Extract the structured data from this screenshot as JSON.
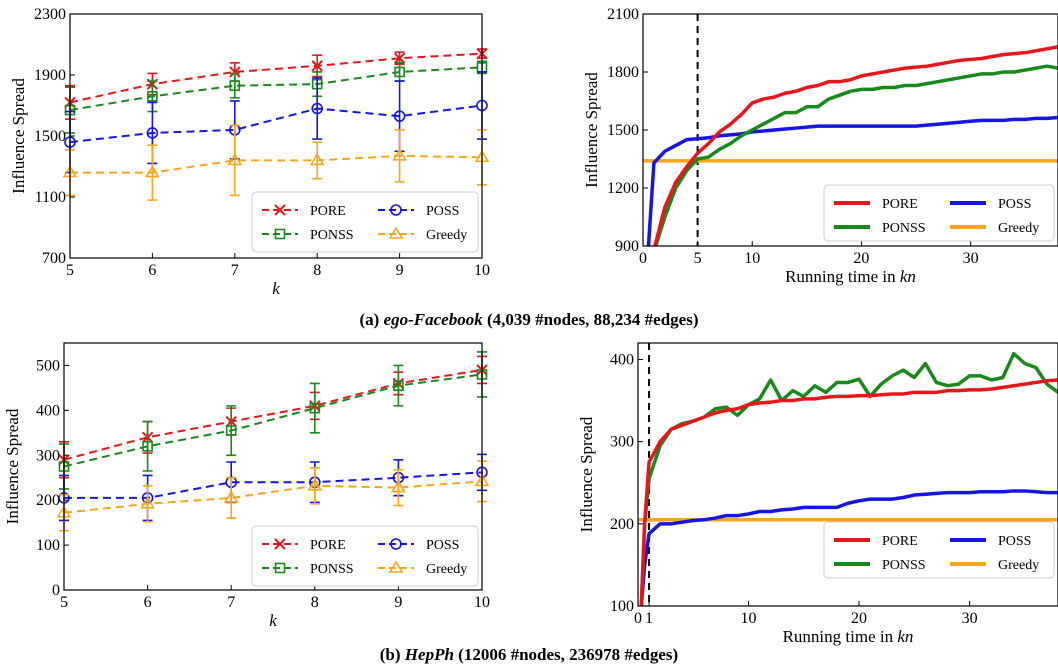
{
  "colors": {
    "pore": "#e8161b",
    "ponss": "#178a1a",
    "poss": "#1515e6",
    "greedy": "#f7a61b",
    "axis": "#000000"
  },
  "captions": {
    "a": {
      "label": "(a) ",
      "dataset": "ego-Facebook",
      "details": " (4,039 #nodes, 88,234 #edges)"
    },
    "b": {
      "label": "(b) ",
      "dataset": "HepPh",
      "details": " (12006 #nodes, 236978 #edges)"
    }
  },
  "chart_data": [
    {
      "id": "a-left",
      "type": "line",
      "xlabel": "k",
      "ylabel": "Influence Spread",
      "x": [
        5,
        6,
        7,
        8,
        9,
        10
      ],
      "xlim": [
        5,
        10
      ],
      "ylim": [
        700,
        2300
      ],
      "xticks": [
        5,
        6,
        7,
        8,
        9,
        10
      ],
      "yticks": [
        700,
        1100,
        1500,
        1900,
        2300
      ],
      "legend_position": "lower right",
      "series": [
        {
          "name": "PORE",
          "key": "pore",
          "marker": "x",
          "values": [
            1720,
            1840,
            1920,
            1960,
            2010,
            2040
          ],
          "errors": [
            110,
            70,
            60,
            70,
            40,
            30
          ]
        },
        {
          "name": "PONSS",
          "key": "ponss",
          "marker": "s",
          "values": [
            1670,
            1760,
            1830,
            1840,
            1920,
            1950
          ],
          "errors": [
            150,
            100,
            80,
            80,
            60,
            40
          ]
        },
        {
          "name": "POSS",
          "key": "poss",
          "marker": "o",
          "values": [
            1460,
            1520,
            1540,
            1680,
            1630,
            1700
          ],
          "errors": [
            200,
            200,
            190,
            200,
            230,
            220
          ]
        },
        {
          "name": "Greedy",
          "key": "greedy",
          "marker": "^",
          "values": [
            1260,
            1260,
            1340,
            1340,
            1370,
            1360
          ],
          "errors": [
            150,
            180,
            230,
            120,
            170,
            180
          ]
        }
      ]
    },
    {
      "id": "a-right",
      "type": "line",
      "xlabel": "Running time in ",
      "xlabel_italic": "kn",
      "ylabel": "Influence Spread",
      "xlim": [
        0,
        38
      ],
      "ylim": [
        900,
        2100
      ],
      "xticks": [
        0,
        5,
        10,
        20,
        30
      ],
      "yticks": [
        900,
        1200,
        1500,
        1800,
        2100
      ],
      "vline": 5,
      "legend_position": "lower right",
      "series": [
        {
          "name": "PORE",
          "key": "pore",
          "x": [
            0.5,
            1,
            2,
            3,
            4,
            5,
            6,
            7,
            8,
            9,
            10,
            11,
            12,
            13,
            14,
            15,
            16,
            17,
            18,
            19,
            20,
            21,
            22,
            23,
            24,
            25,
            26,
            27,
            28,
            29,
            30,
            31,
            32,
            33,
            34,
            35,
            36,
            37,
            38
          ],
          "values": [
            850,
            880,
            1100,
            1230,
            1310,
            1380,
            1430,
            1490,
            1530,
            1580,
            1640,
            1660,
            1670,
            1690,
            1700,
            1720,
            1730,
            1750,
            1750,
            1760,
            1780,
            1790,
            1800,
            1810,
            1820,
            1825,
            1830,
            1840,
            1850,
            1860,
            1865,
            1870,
            1880,
            1890,
            1895,
            1900,
            1910,
            1920,
            1930
          ]
        },
        {
          "name": "PONSS",
          "key": "ponss",
          "x": [
            0.5,
            1,
            2,
            3,
            4,
            5,
            6,
            7,
            8,
            9,
            10,
            11,
            12,
            13,
            14,
            15,
            16,
            17,
            18,
            19,
            20,
            21,
            22,
            23,
            24,
            25,
            26,
            27,
            28,
            29,
            30,
            31,
            32,
            33,
            34,
            35,
            36,
            37,
            38
          ],
          "values": [
            850,
            870,
            1050,
            1200,
            1290,
            1350,
            1360,
            1400,
            1430,
            1470,
            1500,
            1530,
            1560,
            1590,
            1590,
            1620,
            1620,
            1660,
            1680,
            1700,
            1710,
            1710,
            1720,
            1720,
            1730,
            1730,
            1740,
            1750,
            1760,
            1770,
            1780,
            1790,
            1790,
            1800,
            1800,
            1810,
            1820,
            1830,
            1820
          ]
        },
        {
          "name": "POSS",
          "key": "poss",
          "x": [
            0.5,
            1,
            2,
            3,
            4,
            5,
            6,
            7,
            8,
            9,
            10,
            11,
            12,
            13,
            14,
            15,
            16,
            17,
            18,
            19,
            20,
            21,
            22,
            23,
            24,
            25,
            26,
            27,
            28,
            29,
            30,
            31,
            32,
            33,
            34,
            35,
            36,
            37,
            38
          ],
          "values": [
            900,
            1330,
            1390,
            1420,
            1450,
            1455,
            1460,
            1470,
            1475,
            1480,
            1490,
            1495,
            1500,
            1505,
            1510,
            1515,
            1520,
            1520,
            1520,
            1520,
            1520,
            1520,
            1520,
            1520,
            1520,
            1520,
            1525,
            1530,
            1535,
            1540,
            1545,
            1550,
            1550,
            1550,
            1555,
            1555,
            1560,
            1560,
            1565
          ]
        },
        {
          "name": "Greedy",
          "key": "greedy",
          "x": [
            0,
            38
          ],
          "values": [
            1340,
            1340
          ]
        }
      ]
    },
    {
      "id": "b-left",
      "type": "line",
      "xlabel": "k",
      "ylabel": "Influence Spread",
      "x": [
        5,
        6,
        7,
        8,
        9,
        10
      ],
      "xlim": [
        5,
        10
      ],
      "ylim": [
        0,
        550
      ],
      "xticks": [
        5,
        6,
        7,
        8,
        9,
        10
      ],
      "yticks": [
        0,
        100,
        200,
        300,
        400,
        500
      ],
      "legend_position": "lower right",
      "series": [
        {
          "name": "PORE",
          "key": "pore",
          "marker": "x",
          "values": [
            290,
            340,
            375,
            410,
            460,
            490
          ],
          "errors": [
            40,
            35,
            30,
            30,
            25,
            30
          ]
        },
        {
          "name": "PONSS",
          "key": "ponss",
          "marker": "s",
          "values": [
            275,
            320,
            355,
            405,
            455,
            480
          ],
          "errors": [
            50,
            55,
            55,
            55,
            45,
            50
          ]
        },
        {
          "name": "POSS",
          "key": "poss",
          "marker": "o",
          "values": [
            205,
            205,
            240,
            240,
            250,
            262
          ],
          "errors": [
            50,
            50,
            45,
            45,
            40,
            40
          ]
        },
        {
          "name": "Greedy",
          "key": "greedy",
          "marker": "^",
          "values": [
            172,
            192,
            205,
            232,
            228,
            242
          ],
          "errors": [
            40,
            40,
            45,
            40,
            40,
            45
          ]
        }
      ]
    },
    {
      "id": "b-right",
      "type": "line",
      "xlabel": "Running time in ",
      "xlabel_italic": "kn",
      "ylabel": "Influence Spread",
      "xlim": [
        0,
        38
      ],
      "ylim": [
        100,
        420
      ],
      "xticks": [
        0,
        1,
        10,
        20,
        30
      ],
      "yticks": [
        100,
        200,
        300,
        400
      ],
      "vline": 1,
      "legend_position": "lower right",
      "series": [
        {
          "name": "PORE",
          "key": "pore",
          "x": [
            0.3,
            0.6,
            1,
            2,
            3,
            4,
            5,
            6,
            7,
            8,
            9,
            10,
            11,
            12,
            13,
            14,
            15,
            16,
            17,
            18,
            19,
            20,
            21,
            22,
            23,
            24,
            25,
            26,
            27,
            28,
            29,
            30,
            31,
            32,
            33,
            34,
            35,
            36,
            37,
            38
          ],
          "values": [
            100,
            200,
            275,
            300,
            315,
            320,
            325,
            330,
            335,
            338,
            340,
            345,
            347,
            348,
            350,
            350,
            352,
            352,
            354,
            355,
            355,
            356,
            356,
            357,
            358,
            358,
            360,
            360,
            360,
            362,
            362,
            363,
            363,
            364,
            366,
            368,
            370,
            372,
            374,
            375
          ]
        },
        {
          "name": "PONSS",
          "key": "ponss",
          "x": [
            0.3,
            0.6,
            1,
            2,
            3,
            4,
            5,
            6,
            7,
            8,
            9,
            10,
            11,
            12,
            13,
            14,
            15,
            16,
            17,
            18,
            19,
            20,
            21,
            22,
            23,
            24,
            25,
            26,
            27,
            28,
            29,
            30,
            31,
            32,
            33,
            34,
            35,
            36,
            37,
            38
          ],
          "values": [
            100,
            200,
            255,
            295,
            315,
            322,
            325,
            330,
            340,
            342,
            332,
            345,
            352,
            375,
            350,
            362,
            355,
            368,
            360,
            372,
            372,
            376,
            355,
            370,
            380,
            387,
            378,
            395,
            372,
            368,
            370,
            380,
            380,
            375,
            378,
            407,
            395,
            390,
            370,
            360
          ]
        },
        {
          "name": "POSS",
          "key": "poss",
          "x": [
            0.3,
            0.6,
            1,
            2,
            3,
            4,
            5,
            6,
            7,
            8,
            9,
            10,
            11,
            12,
            13,
            14,
            15,
            16,
            17,
            18,
            19,
            20,
            21,
            22,
            23,
            24,
            25,
            26,
            27,
            28,
            29,
            30,
            31,
            32,
            33,
            34,
            35,
            36,
            37,
            38
          ],
          "values": [
            100,
            150,
            188,
            200,
            200,
            202,
            204,
            205,
            207,
            210,
            210,
            212,
            215,
            215,
            217,
            218,
            220,
            220,
            220,
            220,
            225,
            228,
            230,
            230,
            230,
            232,
            235,
            236,
            237,
            238,
            238,
            238,
            239,
            239,
            239,
            240,
            240,
            239,
            238,
            238
          ]
        },
        {
          "name": "Greedy",
          "key": "greedy",
          "x": [
            0,
            38
          ],
          "values": [
            205,
            205
          ]
        }
      ]
    }
  ]
}
